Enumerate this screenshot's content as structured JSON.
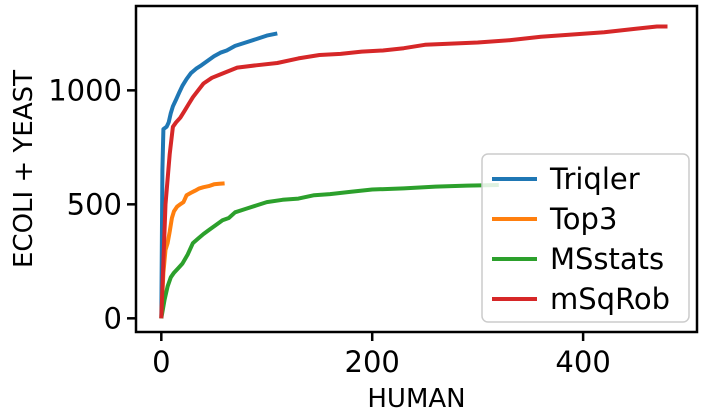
{
  "chart_data": {
    "type": "line",
    "title": "",
    "xlabel": "HUMAN",
    "ylabel": "ECOLI + YEAST",
    "xlim": [
      -24,
      508
    ],
    "ylim": [
      -60,
      1370
    ],
    "xticks": [
      0,
      200,
      400
    ],
    "yticks": [
      0,
      500,
      1000
    ],
    "grid": false,
    "legend_position": "lower-right",
    "series": [
      {
        "name": "Triqler",
        "color": "#1f77b4",
        "points": [
          [
            0,
            0
          ],
          [
            1,
            650
          ],
          [
            2,
            830
          ],
          [
            5,
            840
          ],
          [
            7,
            860
          ],
          [
            9,
            900
          ],
          [
            11,
            930
          ],
          [
            14,
            960
          ],
          [
            17,
            990
          ],
          [
            20,
            1020
          ],
          [
            24,
            1050
          ],
          [
            28,
            1075
          ],
          [
            33,
            1095
          ],
          [
            38,
            1110
          ],
          [
            44,
            1130
          ],
          [
            50,
            1150
          ],
          [
            56,
            1165
          ],
          [
            62,
            1175
          ],
          [
            70,
            1195
          ],
          [
            80,
            1210
          ],
          [
            90,
            1225
          ],
          [
            100,
            1240
          ],
          [
            110,
            1250
          ]
        ]
      },
      {
        "name": "Top3",
        "color": "#ff7f0e",
        "points": [
          [
            0,
            0
          ],
          [
            2,
            200
          ],
          [
            4,
            300
          ],
          [
            6,
            330
          ],
          [
            8,
            380
          ],
          [
            10,
            440
          ],
          [
            12,
            470
          ],
          [
            15,
            490
          ],
          [
            18,
            500
          ],
          [
            21,
            510
          ],
          [
            24,
            540
          ],
          [
            28,
            550
          ],
          [
            32,
            560
          ],
          [
            36,
            570
          ],
          [
            40,
            575
          ],
          [
            45,
            580
          ],
          [
            50,
            588
          ],
          [
            55,
            590
          ],
          [
            60,
            592
          ]
        ]
      },
      {
        "name": "MSstats",
        "color": "#2ca02c",
        "points": [
          [
            0,
            0
          ],
          [
            3,
            80
          ],
          [
            6,
            140
          ],
          [
            9,
            180
          ],
          [
            12,
            200
          ],
          [
            16,
            220
          ],
          [
            20,
            240
          ],
          [
            25,
            280
          ],
          [
            30,
            330
          ],
          [
            35,
            350
          ],
          [
            40,
            370
          ],
          [
            46,
            390
          ],
          [
            52,
            410
          ],
          [
            58,
            430
          ],
          [
            64,
            440
          ],
          [
            70,
            465
          ],
          [
            80,
            480
          ],
          [
            90,
            495
          ],
          [
            100,
            510
          ],
          [
            115,
            520
          ],
          [
            130,
            525
          ],
          [
            145,
            540
          ],
          [
            160,
            545
          ],
          [
            180,
            555
          ],
          [
            200,
            565
          ],
          [
            230,
            570
          ],
          [
            260,
            578
          ],
          [
            290,
            582
          ],
          [
            320,
            585
          ]
        ]
      },
      {
        "name": "mSqRob",
        "color": "#d62728",
        "points": [
          [
            0,
            0
          ],
          [
            4,
            500
          ],
          [
            8,
            720
          ],
          [
            11,
            840
          ],
          [
            14,
            860
          ],
          [
            18,
            880
          ],
          [
            22,
            910
          ],
          [
            26,
            940
          ],
          [
            30,
            970
          ],
          [
            35,
            1000
          ],
          [
            40,
            1030
          ],
          [
            48,
            1055
          ],
          [
            56,
            1070
          ],
          [
            64,
            1085
          ],
          [
            72,
            1100
          ],
          [
            90,
            1110
          ],
          [
            110,
            1120
          ],
          [
            130,
            1140
          ],
          [
            150,
            1155
          ],
          [
            170,
            1160
          ],
          [
            190,
            1170
          ],
          [
            210,
            1175
          ],
          [
            230,
            1185
          ],
          [
            250,
            1200
          ],
          [
            275,
            1205
          ],
          [
            300,
            1210
          ],
          [
            330,
            1220
          ],
          [
            360,
            1235
          ],
          [
            390,
            1245
          ],
          [
            420,
            1255
          ],
          [
            450,
            1270
          ],
          [
            470,
            1280
          ],
          [
            480,
            1280
          ]
        ]
      }
    ]
  }
}
